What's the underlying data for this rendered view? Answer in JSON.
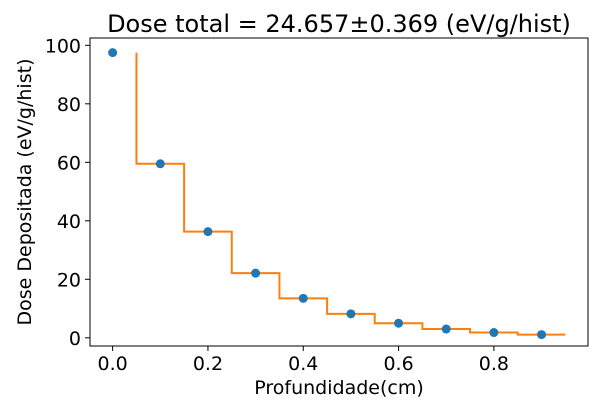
{
  "chart_data": {
    "type": "scatter",
    "title": "Dose total = 24.657±0.369 (eV/g/hist)",
    "xlabel": "Profundidade(cm)",
    "ylabel": "Dose Depositada (eV/g/hist)",
    "xlim": [
      -0.0475,
      0.9975
    ],
    "ylim": [
      -2.8,
      102.5
    ],
    "grid": false,
    "xticks": [
      0.0,
      0.2,
      0.4,
      0.6,
      0.8
    ],
    "xtick_labels": [
      "0.0",
      "0.2",
      "0.4",
      "0.6",
      "0.8"
    ],
    "yticks": [
      0,
      20,
      40,
      60,
      80,
      100
    ],
    "ytick_labels": [
      "0",
      "20",
      "40",
      "60",
      "80",
      "100"
    ],
    "series": [
      {
        "kind": "points",
        "color": "#1f77b4",
        "x": [
          0.0,
          0.1,
          0.2,
          0.3,
          0.4,
          0.5,
          0.6,
          0.7,
          0.8,
          0.9
        ],
        "y": [
          97.5,
          59.5,
          36.3,
          22.1,
          13.5,
          8.2,
          5.0,
          3.0,
          1.8,
          1.1
        ]
      },
      {
        "kind": "step",
        "color": "#ff7f0e",
        "x": [
          0.05,
          0.05,
          0.15,
          0.15,
          0.25,
          0.25,
          0.35,
          0.35,
          0.45,
          0.45,
          0.55,
          0.55,
          0.65,
          0.65,
          0.75,
          0.75,
          0.85,
          0.85,
          0.95
        ],
        "y": [
          97.5,
          59.5,
          59.5,
          36.3,
          36.3,
          22.1,
          22.1,
          13.5,
          13.5,
          8.2,
          8.2,
          5.0,
          5.0,
          3.0,
          3.0,
          1.8,
          1.8,
          1.1,
          1.1
        ]
      }
    ]
  }
}
